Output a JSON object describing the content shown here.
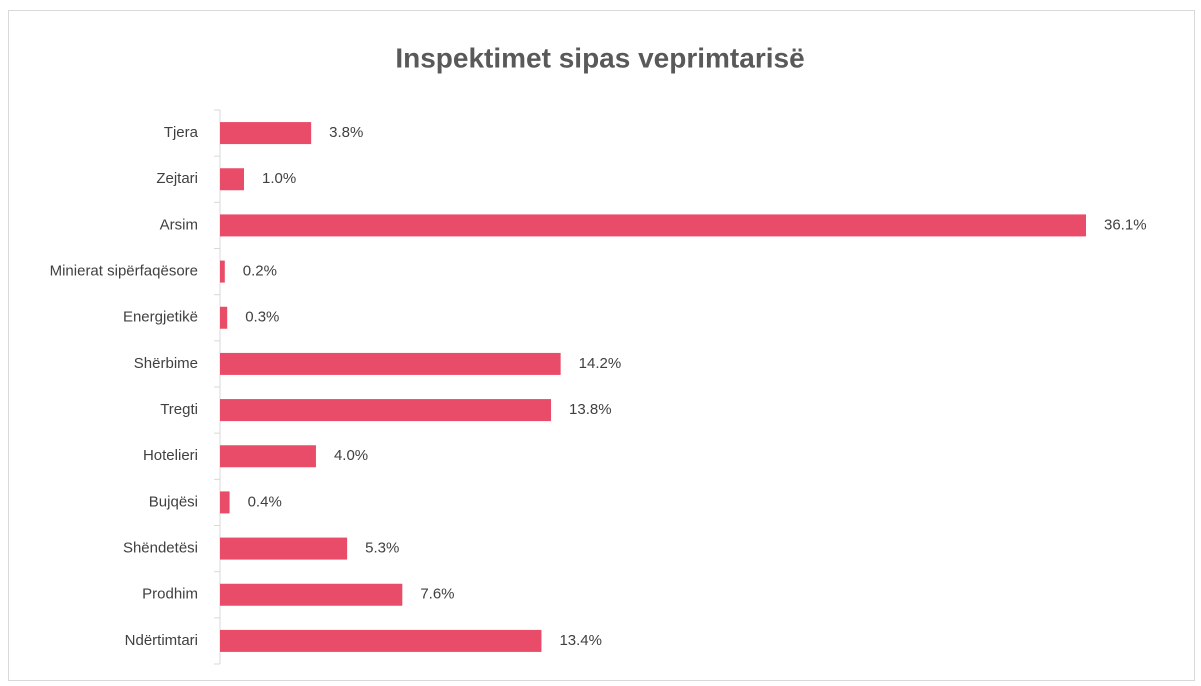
{
  "chart_data": {
    "type": "bar",
    "orientation": "horizontal",
    "title": "Inspektimet sipas veprimtarisë",
    "categories": [
      "Tjera",
      "Zejtari",
      "Arsim",
      "Minierat sipërfaqësore",
      "Energjetikë",
      "Shërbime",
      "Tregti",
      "Hotelieri",
      "Bujqësi",
      "Shëndetësi",
      "Prodhim",
      "Ndërtimtari"
    ],
    "values": [
      3.8,
      1.0,
      36.1,
      0.2,
      0.3,
      14.2,
      13.8,
      4.0,
      0.4,
      5.3,
      7.6,
      13.4
    ],
    "value_labels": [
      "3.8%",
      "1.0%",
      "36.1%",
      "0.2%",
      "0.3%",
      "14.2%",
      "13.8%",
      "4.0%",
      "0.4%",
      "5.3%",
      "7.6%",
      "13.4%"
    ],
    "color": "#e84c68"
  }
}
